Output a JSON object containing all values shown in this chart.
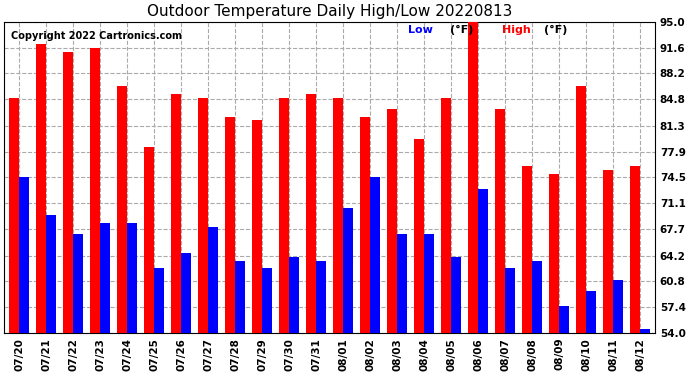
{
  "title": "Outdoor Temperature Daily High/Low 20220813",
  "copyright": "Copyright 2022 Cartronics.com",
  "legend_low": "Low",
  "legend_high": "High",
  "legend_unit": "(°F)",
  "dates": [
    "07/20",
    "07/21",
    "07/22",
    "07/23",
    "07/24",
    "07/25",
    "07/26",
    "07/27",
    "07/28",
    "07/29",
    "07/30",
    "07/31",
    "08/01",
    "08/02",
    "08/03",
    "08/04",
    "08/05",
    "08/06",
    "08/07",
    "08/08",
    "08/09",
    "08/10",
    "08/11",
    "08/12"
  ],
  "highs": [
    85.0,
    92.0,
    91.0,
    91.5,
    86.5,
    78.5,
    85.5,
    85.0,
    82.5,
    82.0,
    85.0,
    85.5,
    85.0,
    82.5,
    83.5,
    79.5,
    85.0,
    95.5,
    83.5,
    76.0,
    75.0,
    86.5,
    75.5,
    76.0
  ],
  "lows": [
    74.5,
    69.5,
    67.0,
    68.5,
    68.5,
    62.5,
    64.5,
    68.0,
    63.5,
    62.5,
    64.0,
    63.5,
    70.5,
    74.5,
    67.0,
    67.0,
    64.0,
    73.0,
    62.5,
    63.5,
    57.5,
    59.5,
    61.0,
    54.5
  ],
  "bar_color_high": "#ff0000",
  "bar_color_low": "#0000ff",
  "background_color": "#ffffff",
  "grid_color": "#aaaaaa",
  "yticks": [
    54.0,
    57.4,
    60.8,
    64.2,
    67.7,
    71.1,
    74.5,
    77.9,
    81.3,
    84.8,
    88.2,
    91.6,
    95.0
  ],
  "ylim": [
    54.0,
    95.0
  ],
  "title_fontsize": 11,
  "copyright_fontsize": 7,
  "tick_fontsize": 7.5,
  "legend_fontsize": 8
}
